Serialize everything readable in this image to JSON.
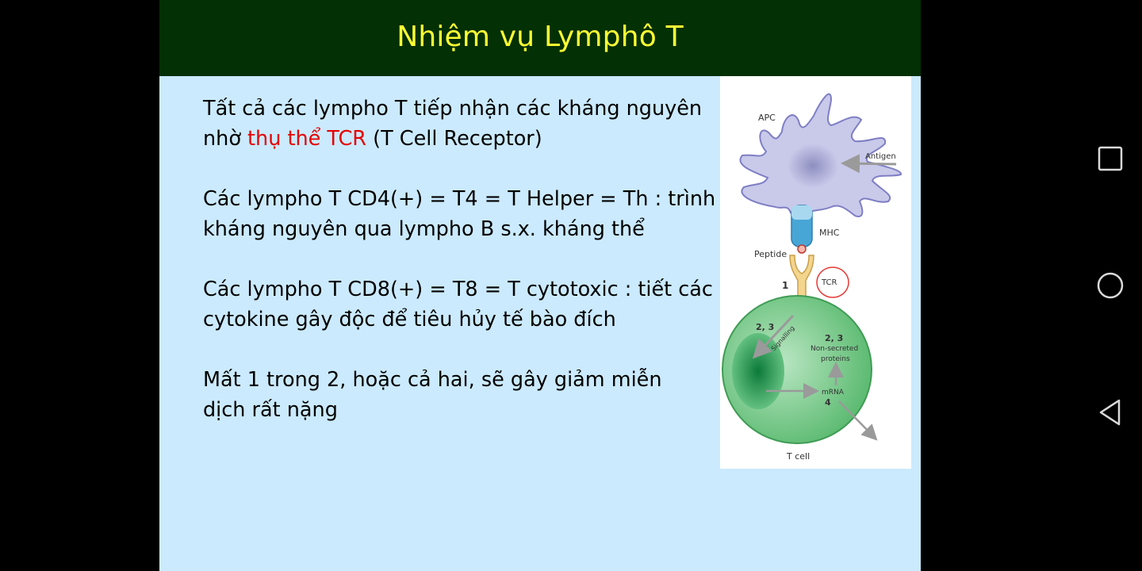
{
  "slide": {
    "title": "Nhiệm vụ Lymphô T",
    "paragraphs": [
      {
        "line1": "Tất cả các lympho T tiếp nhận các kháng nguyên",
        "line2_before": "nhờ ",
        "line2_highlight": "thụ thể TCR",
        "line2_after": " (T Cell Receptor)"
      },
      {
        "line1": "Các lympho T CD4(+) = T4 = T Helper = Th : trình",
        "line2": "kháng nguyên qua lympho B s.x. kháng thể"
      },
      {
        "line1": "Các lympho T CD8(+) = T8 = T cytotoxic : tiết các",
        "line2": "cytokine gây độc để tiêu hủy tế bào đích"
      },
      {
        "line1": "Mất 1 trong 2, hoặc cả hai, sẽ gây giảm miễn",
        "line2": "dịch rất nặng"
      }
    ],
    "figure": {
      "apc": "APC",
      "antigen": "Antigen",
      "mhc": "MHC",
      "peptide": "Peptide",
      "step1": "1",
      "tcr": "TCR",
      "step23_left": "2, 3",
      "signalling": "Signalling",
      "step23_right": "2, 3",
      "non_secreted": "Non-secreted",
      "proteins": "proteins",
      "mrna": "mRNA",
      "step4": "4",
      "tcell": "T cell"
    }
  },
  "navigation": {
    "recents": "recents-button",
    "home": "home-button",
    "back": "back-button"
  },
  "colors": {
    "title_bar": "#033004",
    "title_text": "#ffff33",
    "slide_bg": "#cbeafd",
    "highlight": "#e60000"
  }
}
